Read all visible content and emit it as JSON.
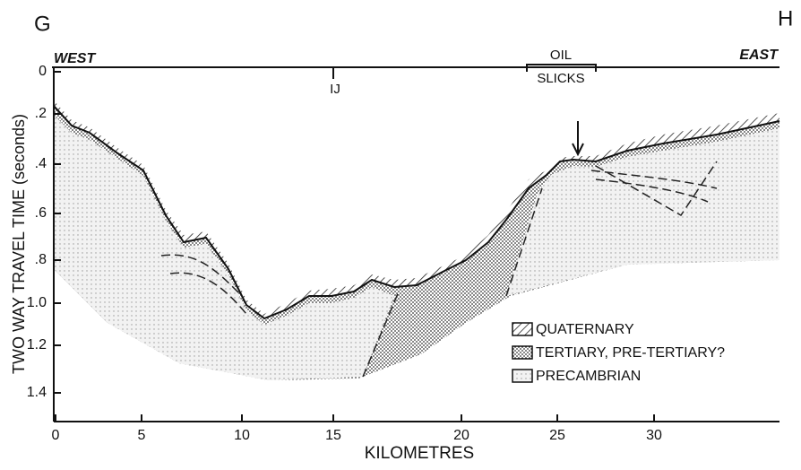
{
  "corner_labels": {
    "left": "G",
    "right": "H"
  },
  "top_labels": {
    "west": "WEST",
    "east": "EAST",
    "marker": "IJ",
    "oil": "OIL",
    "slicks": "SLICKS"
  },
  "axes": {
    "y_label": "TWO WAY TRAVEL TIME (seconds)",
    "x_label": "KILOMETRES",
    "y_tick_labels": [
      "0",
      ".2",
      ".4",
      ".6",
      ".8",
      "1.0",
      "1.2",
      "1.4"
    ],
    "x_tick_labels": [
      "0",
      "5",
      "10",
      "15",
      "20",
      "25",
      "30"
    ]
  },
  "legend": [
    "QUATERNARY",
    "TERTIARY, PRE-TERTIARY?",
    "PRECAMBRIAN"
  ]
}
